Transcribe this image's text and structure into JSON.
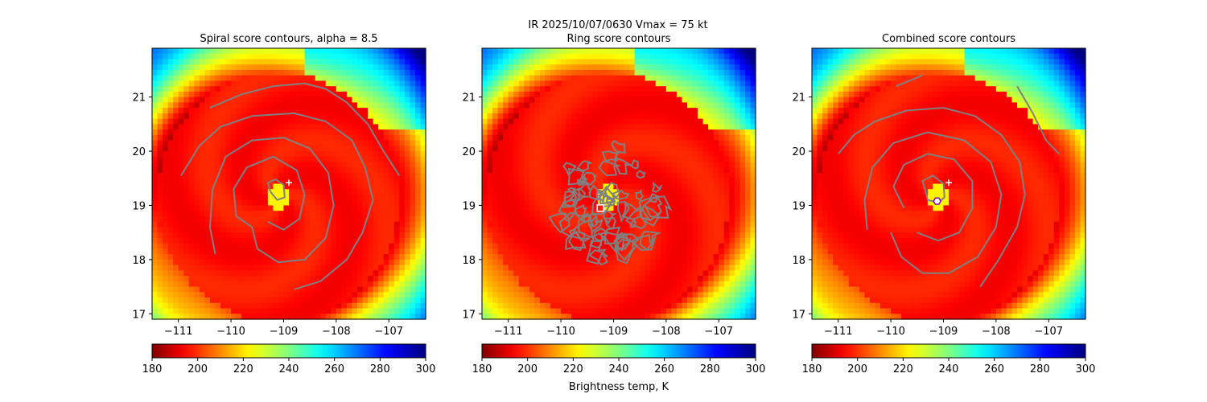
{
  "suptitle_line1": "IR  2025/10/07/0630    Vmax = 75 kt",
  "colorbar_label": "Brightness temp, K",
  "chart_data": [
    {
      "type": "heatmap",
      "title": "Spiral score contours, alpha =  8.5",
      "xlim": [
        -111.5,
        -106.3
      ],
      "ylim": [
        16.9,
        21.9
      ],
      "xticks": [
        -111,
        -110,
        -109,
        -108,
        -107
      ],
      "yticks": [
        17,
        18,
        19,
        20,
        21
      ],
      "colorbar": {
        "ticks": [
          180,
          200,
          220,
          240,
          260,
          280,
          300
        ],
        "range": [
          180,
          300
        ]
      },
      "marker": {
        "symbol": "plus",
        "lon": -108.9,
        "lat": 19.42
      },
      "contours": [
        [
          [
            -110.4,
            20.8
          ],
          [
            -109.8,
            21.05
          ],
          [
            -109.2,
            21.2
          ],
          [
            -108.6,
            21.25
          ],
          [
            -108.2,
            21.15
          ],
          [
            -107.8,
            20.9
          ],
          [
            -107.4,
            20.5
          ],
          [
            -107.1,
            20.0
          ],
          [
            -106.8,
            19.55
          ]
        ],
        [
          [
            -110.95,
            19.55
          ],
          [
            -110.6,
            20.1
          ],
          [
            -110.2,
            20.45
          ],
          [
            -109.6,
            20.65
          ],
          [
            -108.8,
            20.7
          ],
          [
            -108.2,
            20.55
          ],
          [
            -107.7,
            20.2
          ],
          [
            -107.45,
            19.7
          ],
          [
            -107.3,
            19.1
          ],
          [
            -107.5,
            18.5
          ],
          [
            -107.8,
            18.0
          ],
          [
            -108.3,
            17.6
          ],
          [
            -108.8,
            17.45
          ]
        ],
        [
          [
            -110.3,
            18.1
          ],
          [
            -110.4,
            18.6
          ],
          [
            -110.35,
            19.3
          ],
          [
            -110.1,
            19.9
          ],
          [
            -109.6,
            20.2
          ],
          [
            -109.0,
            20.25
          ],
          [
            -108.5,
            20.05
          ],
          [
            -108.15,
            19.6
          ],
          [
            -108.05,
            19.0
          ],
          [
            -108.2,
            18.4
          ],
          [
            -108.6,
            18.0
          ],
          [
            -109.1,
            17.95
          ],
          [
            -109.5,
            18.2
          ],
          [
            -109.6,
            18.6
          ]
        ],
        [
          [
            -109.6,
            18.6
          ],
          [
            -109.9,
            18.8
          ],
          [
            -109.95,
            19.3
          ],
          [
            -109.7,
            19.7
          ],
          [
            -109.2,
            19.9
          ],
          [
            -108.75,
            19.65
          ],
          [
            -108.6,
            19.2
          ],
          [
            -108.7,
            18.75
          ],
          [
            -109.0,
            18.55
          ],
          [
            -109.3,
            18.7
          ]
        ],
        [
          [
            -109.25,
            19.25
          ],
          [
            -109.3,
            19.42
          ],
          [
            -109.15,
            19.48
          ],
          [
            -109.0,
            19.38
          ],
          [
            -108.98,
            19.15
          ],
          [
            -109.12,
            19.1
          ],
          [
            -109.25,
            19.25
          ]
        ]
      ]
    },
    {
      "type": "heatmap",
      "title": "Ring score contours",
      "xlim": [
        -111.5,
        -106.3
      ],
      "ylim": [
        16.9,
        21.9
      ],
      "xticks": [
        -111,
        -110,
        -109,
        -108,
        -107
      ],
      "yticks": [
        17,
        18,
        19,
        20,
        21
      ],
      "colorbar": {
        "ticks": [
          180,
          200,
          220,
          240,
          260,
          280,
          300
        ],
        "range": [
          180,
          300
        ]
      },
      "marker": {
        "symbol": "square",
        "lon": -109.25,
        "lat": 18.95
      },
      "contour_region": {
        "lon_range": [
          -110.2,
          -108.0
        ],
        "lat_range": [
          17.85,
          20.3
        ]
      }
    },
    {
      "type": "heatmap",
      "title": "Combined score contours",
      "xlim": [
        -111.5,
        -106.3
      ],
      "ylim": [
        16.9,
        21.9
      ],
      "xticks": [
        -111,
        -110,
        -109,
        -108,
        -107
      ],
      "yticks": [
        17,
        18,
        19,
        20,
        21
      ],
      "colorbar": {
        "ticks": [
          180,
          200,
          220,
          240,
          260,
          280,
          300
        ],
        "range": [
          180,
          300
        ]
      },
      "marker": {
        "symbol": "plus",
        "lon": -108.9,
        "lat": 19.42
      },
      "marker2": {
        "symbol": "hexagon",
        "lon": -109.12,
        "lat": 19.08
      },
      "contours": [
        [
          [
            -109.9,
            21.2
          ],
          [
            -109.4,
            21.4
          ]
        ],
        [
          [
            -107.6,
            21.2
          ],
          [
            -107.3,
            20.7
          ],
          [
            -107.05,
            20.2
          ],
          [
            -106.8,
            19.95
          ]
        ],
        [
          [
            -111.0,
            19.95
          ],
          [
            -110.7,
            20.3
          ],
          [
            -110.3,
            20.55
          ],
          [
            -109.7,
            20.75
          ],
          [
            -109.0,
            20.8
          ],
          [
            -108.4,
            20.65
          ],
          [
            -107.9,
            20.3
          ],
          [
            -107.55,
            19.8
          ],
          [
            -107.45,
            19.2
          ],
          [
            -107.6,
            18.6
          ],
          [
            -107.95,
            18.0
          ],
          [
            -108.3,
            17.5
          ]
        ],
        [
          [
            -110.45,
            18.55
          ],
          [
            -110.5,
            19.1
          ],
          [
            -110.35,
            19.7
          ],
          [
            -109.95,
            20.15
          ],
          [
            -109.3,
            20.35
          ],
          [
            -108.6,
            20.2
          ],
          [
            -108.1,
            19.8
          ],
          [
            -107.9,
            19.2
          ],
          [
            -108.0,
            18.6
          ],
          [
            -108.35,
            18.05
          ],
          [
            -108.9,
            17.75
          ],
          [
            -109.4,
            17.75
          ],
          [
            -109.8,
            18.05
          ],
          [
            -110.0,
            18.5
          ]
        ],
        [
          [
            -109.75,
            18.95
          ],
          [
            -109.95,
            19.35
          ],
          [
            -109.75,
            19.75
          ],
          [
            -109.3,
            19.95
          ],
          [
            -108.8,
            19.85
          ],
          [
            -108.45,
            19.45
          ],
          [
            -108.45,
            18.95
          ],
          [
            -108.7,
            18.5
          ],
          [
            -109.1,
            18.35
          ],
          [
            -109.5,
            18.5
          ]
        ],
        [
          [
            -109.35,
            19.3
          ],
          [
            -109.4,
            19.45
          ],
          [
            -109.2,
            19.55
          ],
          [
            -109.0,
            19.4
          ],
          [
            -108.98,
            19.15
          ],
          [
            -109.1,
            19.05
          ],
          [
            -109.3,
            19.1
          ],
          [
            -109.35,
            19.3
          ]
        ]
      ]
    }
  ]
}
